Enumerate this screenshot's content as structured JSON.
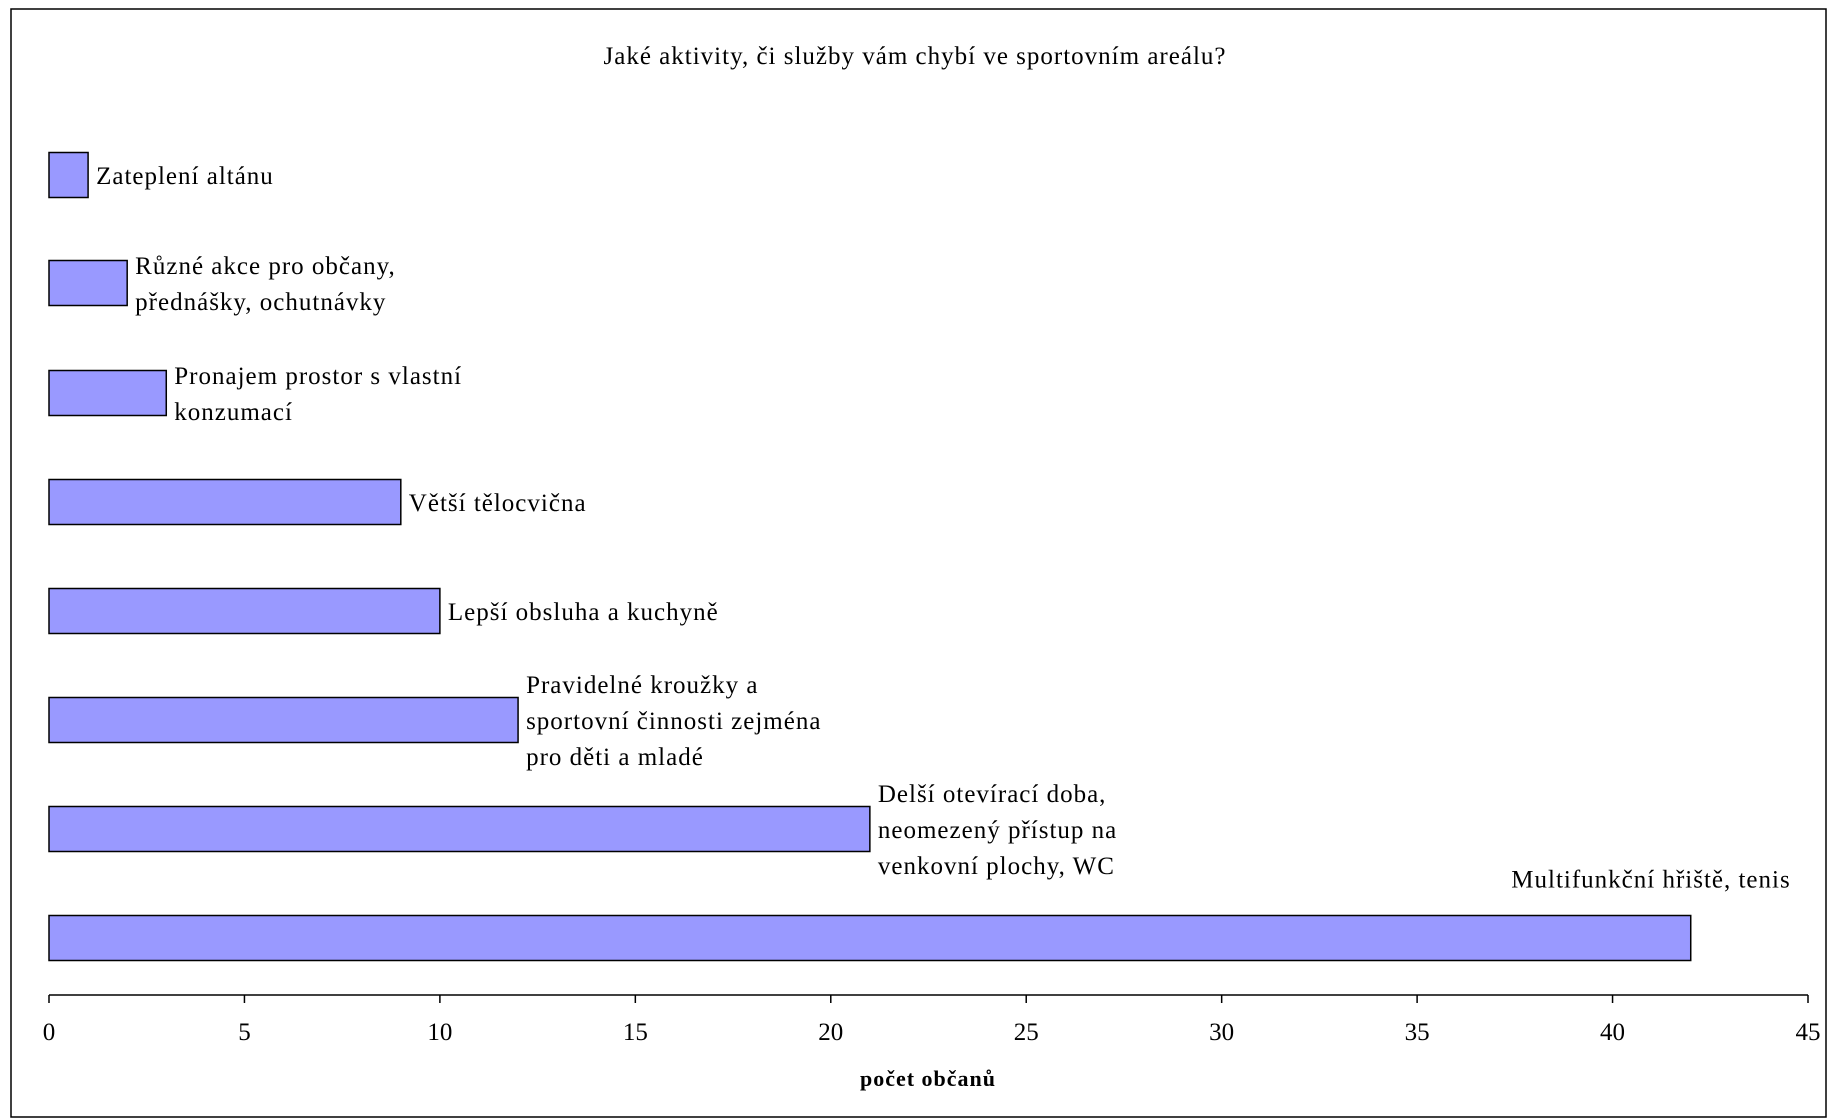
{
  "chart_data": {
    "type": "bar",
    "orientation": "horizontal",
    "title": "Jaké aktivity, či služby vám chybí ve sportovním areálu?",
    "xlabel": "počet občanů",
    "ylabel": "",
    "xlim": [
      0,
      45
    ],
    "xticks": [
      0,
      5,
      10,
      15,
      20,
      25,
      30,
      35,
      40,
      45
    ],
    "grid": false,
    "legend": "none",
    "bar_color": "#9999ff",
    "bar_edge_color": "#000000",
    "categories": [
      "Zateplení altánu",
      "Různé akce pro občany, přednášky, ochutnávky",
      "Pronajem prostor s vlastní konzumací",
      "Větší tělocvična",
      "Lepší obsluha a kuchyně",
      "Pravidelné kroužky a sportovní činnosti zejména pro děti a mladé",
      "Delší otevírací doba, neomezený přístup na venkovní plochy, WC",
      "Multifunkční hřiště, tenis"
    ],
    "label_lines": [
      [
        "Zateplení altánu"
      ],
      [
        "Různé akce pro občany,",
        "přednášky, ochutnávky"
      ],
      [
        "Pronajem prostor s vlastní",
        "konzumací"
      ],
      [
        "Větší tělocvična"
      ],
      [
        "Lepší obsluha a kuchyně"
      ],
      [
        "Pravidelné kroužky a",
        "sportovní činnosti zejména",
        "pro děti a mladé"
      ],
      [
        "Delší otevírací doba,",
        "neomezený přístup na",
        "venkovní plochy, WC"
      ],
      [
        "Multifunkční hřiště, tenis"
      ]
    ],
    "values": [
      1,
      2,
      3,
      9,
      10,
      12,
      21,
      42
    ]
  }
}
